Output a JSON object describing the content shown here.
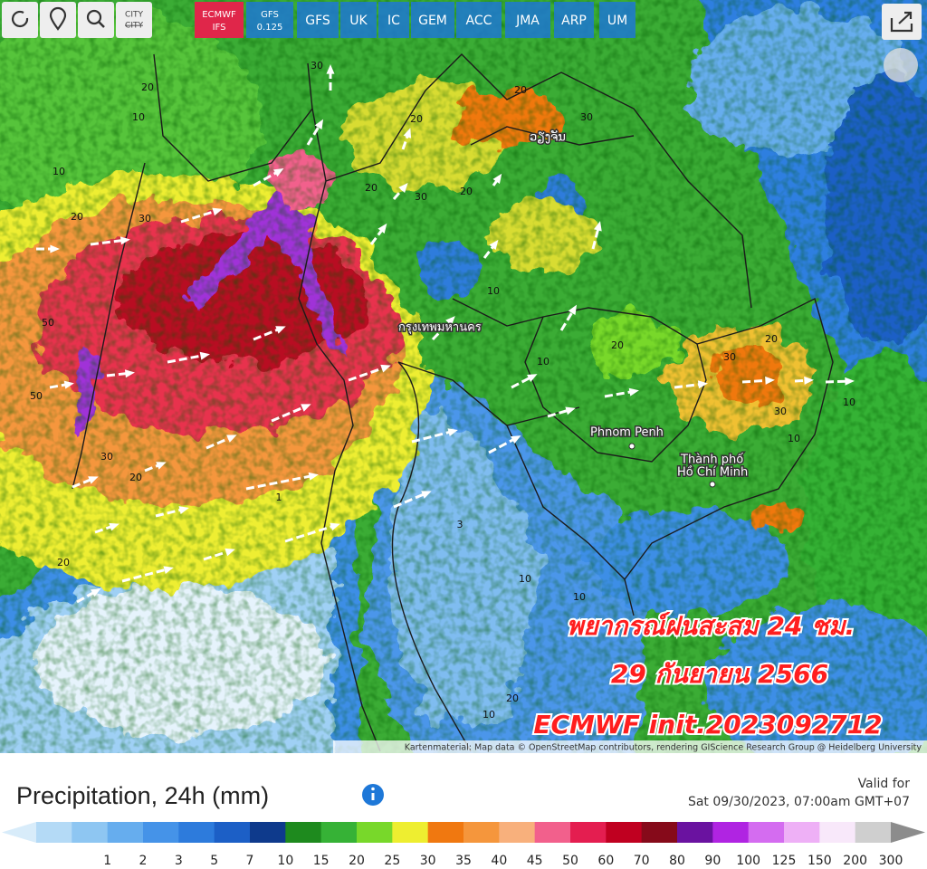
{
  "toolbar": {
    "city_label": "CITY",
    "models": [
      {
        "name": "ECMWF",
        "sub": "IFS"
      },
      {
        "name": "GFS",
        "sub": "0.125"
      },
      {
        "name": "GFS"
      },
      {
        "name": "UK"
      },
      {
        "name": "IC"
      },
      {
        "name": "GEM"
      },
      {
        "name": "ACC"
      },
      {
        "name": "JMA"
      },
      {
        "name": "ARP"
      },
      {
        "name": "UM"
      }
    ]
  },
  "map": {
    "places": [
      "ວຽງຈັນ",
      "กรุงเทพมหานคร",
      "Phnom Penh",
      "Thành phố",
      "Hồ Chí Minh"
    ],
    "contour_labels": [
      20,
      10,
      30,
      20,
      10,
      30,
      20,
      20,
      30,
      20,
      30,
      20,
      10,
      10,
      20,
      30,
      20,
      30,
      10,
      10,
      50,
      50,
      30,
      20,
      20,
      10,
      10,
      10,
      1,
      3,
      10,
      20
    ],
    "overlay": [
      "พยากรณ์ฝนสะสม 24 ชม.",
      "29 กันยายน 2566",
      "ECMWF init.2023092712"
    ],
    "attribution": "Kartenmaterial: Map data © OpenStreetMap contributors, rendering GIScience Research Group @ Heidelberg University"
  },
  "legend": {
    "title": "Precipitation, 24h (mm)",
    "valid_label": "Valid for",
    "valid_time": "Sat 09/30/2023, 07:00am GMT+07",
    "ticks": [
      1,
      2,
      3,
      5,
      7,
      10,
      15,
      20,
      25,
      30,
      35,
      40,
      45,
      50,
      60,
      70,
      80,
      90,
      100,
      125,
      150,
      200,
      300
    ],
    "colors": [
      "#d8ecfa",
      "#b4daf6",
      "#8ec6f2",
      "#66adee",
      "#4593e8",
      "#2d7bdc",
      "#1c5fc6",
      "#0e3a8c",
      "#1e8a1e",
      "#36b236",
      "#78d82a",
      "#eeee30",
      "#f07810",
      "#f5963c",
      "#f8b07c",
      "#f2608c",
      "#e41e50",
      "#c00020",
      "#860a1a",
      "#6a12a0",
      "#b024e2",
      "#d46cf0",
      "#eeb0f6",
      "#f8e8fa",
      "#cfcfcf",
      "#8c8c8c"
    ]
  }
}
